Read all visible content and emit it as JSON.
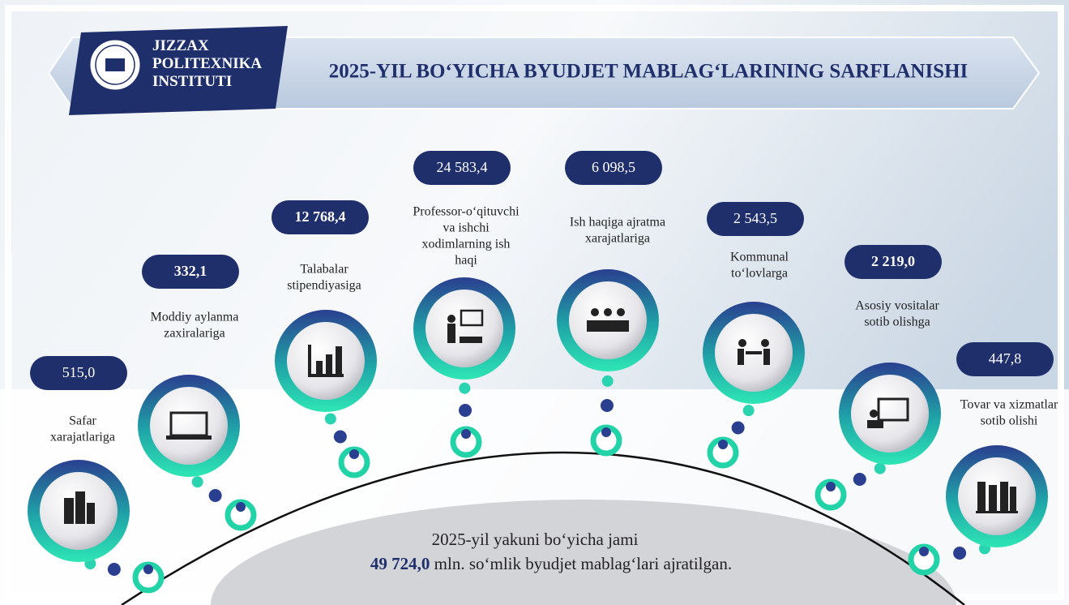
{
  "header": {
    "institute": [
      "JIZZAX",
      "POLITEXNIKA",
      "INSTITUTI"
    ],
    "title": "2025-YIL BO‘YICHA BYUDJET MABLAG‘LARINING SARFLANISHI"
  },
  "items": [
    {
      "value": "515,0",
      "label": [
        "Safar",
        "xarajatlariga"
      ]
    },
    {
      "value": "332,1",
      "label": [
        "Moddiy aylanma",
        "zaxiralariga"
      ]
    },
    {
      "value": "12 768,4",
      "label": [
        "Talabalar",
        "stipendiyasiga"
      ]
    },
    {
      "value": "24 583,4",
      "label": [
        "Professor-o‘qituvchi",
        "va ishchi",
        "xodimlarning ish",
        "haqi"
      ]
    },
    {
      "value": "6 098,5",
      "label": [
        "Ish haqiga ajratma",
        "xarajatlariga"
      ]
    },
    {
      "value": "2  543,5",
      "label": [
        "Kommunal",
        "to‘lovlarga"
      ]
    },
    {
      "value": "2 219,0",
      "label": [
        "Asosiy vositalar",
        "sotib olishga"
      ]
    },
    {
      "value": "447,8",
      "label": [
        "Tovar va xizmatlar",
        "sotib olishi"
      ]
    }
  ],
  "summary": {
    "line1": "2025-yil yakuni bo‘yicha jami",
    "total": "49 724,0",
    "line2": " mln. so‘mlik byudjet mablag‘lari ajratilgan."
  }
}
